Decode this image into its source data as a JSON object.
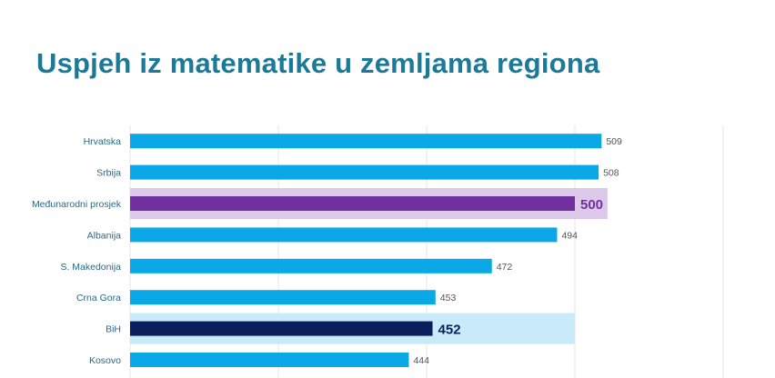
{
  "chart_data": {
    "type": "bar",
    "orientation": "horizontal",
    "title": "Uspjeh iz matematike u zemljama regiona",
    "xlabel": "",
    "ylabel": "",
    "xlim": [
      350,
      550
    ],
    "grid": true,
    "categories": [
      "Hrvatska",
      "Srbija",
      "Međunarodni prosjek",
      "Albanija",
      "S. Makedonija",
      "Crna Gora",
      "BiH",
      "Kosovo"
    ],
    "values": [
      509,
      508,
      500,
      494,
      472,
      453,
      452,
      444
    ],
    "highlighted": [
      "Međunarodni prosjek",
      "BiH"
    ],
    "colors": {
      "default": "#0aa8e6",
      "average": "#7030a0",
      "average_band": "#dcc8e8",
      "bih": "#0a1f5c",
      "bih_band": "#c8eaf9",
      "title": "#1c7a98",
      "label": "#2a6a86",
      "grid": "#e6e6e6"
    }
  }
}
